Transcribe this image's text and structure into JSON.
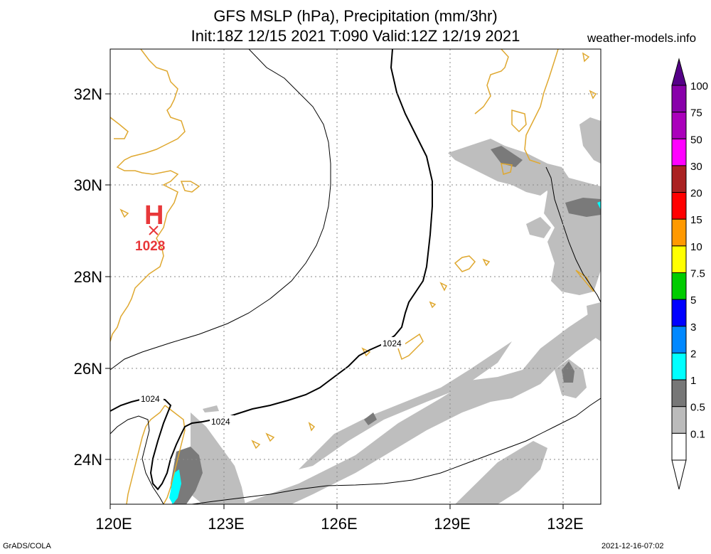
{
  "header": {
    "title_line1": "GFS MSLP (hPa), Precipitation (mm/3hr)",
    "title_line2": "Init:18Z 12/15 2021 T:090 Valid:12Z 12/19 2021",
    "credit": "weather-models.info"
  },
  "footer": {
    "left": "GrADS/COLA",
    "right": "2021-12-16-07:02"
  },
  "map": {
    "lat_labels": [
      "32N",
      "30N",
      "28N",
      "26N",
      "24N"
    ],
    "lon_labels": [
      "120E",
      "123E",
      "126E",
      "129E",
      "132E"
    ],
    "high": {
      "symbol": "H",
      "value": "1028"
    },
    "isobar_labels": [
      "1024",
      "1024",
      "1024"
    ]
  },
  "legend": {
    "labels": [
      "100",
      "75",
      "50",
      "30",
      "20",
      "15",
      "10",
      "7.5",
      "5",
      "3",
      "2",
      "1",
      "0.5",
      "0.1"
    ],
    "colors": [
      "#8800aa",
      "#aa00bb",
      "#ff00ff",
      "#aa2222",
      "#ff0000",
      "#ff9900",
      "#ffff00",
      "#00cc00",
      "#0000ff",
      "#0088ff",
      "#00ffff",
      "#777777",
      "#bbbbbb",
      "#ffffff"
    ]
  }
}
